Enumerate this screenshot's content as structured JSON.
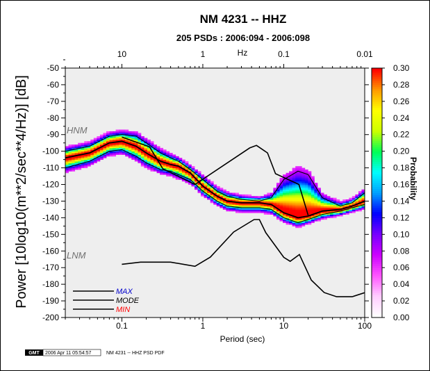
{
  "title": "NM 4231 -- HHZ",
  "subtitle": "205 PSDs : 2006:094 - 2006:098",
  "footer": {
    "logo": "GMT",
    "timestamp": "2006 Apr 11 05:54:57",
    "caption": "NM 4231 -- HHZ PSD PDF"
  },
  "chart_data": {
    "type": "heatmap",
    "x_axis": {
      "label": "Period (sec)",
      "scale": "log",
      "range": [
        0.02,
        100
      ],
      "ticks": [
        0.1,
        1,
        10,
        100
      ],
      "tick_labels": [
        "0.1",
        "1",
        "10",
        "100"
      ]
    },
    "top_axis": {
      "label": "Hz",
      "scale": "log",
      "ticks": [
        10,
        1,
        0.1,
        0.01
      ],
      "tick_labels": [
        "10",
        "1",
        "0.1",
        "0.01"
      ]
    },
    "y_axis": {
      "label": "Power [10log10(m**2/sec**4/Hz)] [dB]",
      "range": [
        -200,
        -50
      ],
      "ticks": [
        -200,
        -190,
        -180,
        -170,
        -160,
        -150,
        -140,
        -130,
        -120,
        -110,
        -100,
        -90,
        -80,
        -70,
        -60,
        -50
      ],
      "tick_labels": [
        "-200",
        "-190",
        "-180",
        "-170",
        "-160",
        "-150",
        "-140",
        "-130",
        "-120",
        "-110",
        "-100",
        "-90",
        "-80",
        "-70",
        "-60",
        "-50"
      ]
    },
    "colorbar": {
      "label": "Probability",
      "range": [
        0.0,
        0.3
      ],
      "ticks": [
        0.0,
        0.02,
        0.04,
        0.06,
        0.08,
        0.1,
        0.12,
        0.14,
        0.16,
        0.18,
        0.2,
        0.22,
        0.24,
        0.26,
        0.28,
        0.3
      ],
      "tick_labels": [
        "0.00",
        "0.02",
        "0.04",
        "0.06",
        "0.08",
        "0.10",
        "0.12",
        "0.14",
        "0.16",
        "0.18",
        "0.20",
        "0.22",
        "0.24",
        "0.26",
        "0.28",
        "0.30"
      ]
    },
    "model_labels": {
      "high": "HNM",
      "low": "LNM"
    },
    "series": [
      {
        "name": "MAX",
        "color": "#0000cc",
        "x": [
          0.02,
          0.04,
          0.07,
          0.1,
          0.15,
          0.2,
          0.3,
          0.4,
          0.5,
          0.7,
          1,
          1.5,
          2,
          3,
          5,
          7,
          10,
          15,
          20,
          30,
          50,
          70,
          100
        ],
        "y": [
          -100,
          -97,
          -91,
          -90,
          -91,
          -95,
          -101,
          -104,
          -106,
          -111,
          -117,
          -124,
          -127,
          -129,
          -130,
          -128,
          -117,
          -112,
          -114,
          -128,
          -133,
          -131,
          -125
        ]
      },
      {
        "name": "MODE",
        "color": "#000000",
        "x": [
          0.02,
          0.04,
          0.07,
          0.1,
          0.15,
          0.2,
          0.3,
          0.4,
          0.5,
          0.7,
          1,
          1.5,
          2,
          3,
          5,
          7,
          10,
          15,
          20,
          30,
          50,
          70,
          100
        ],
        "y": [
          -104,
          -101,
          -95,
          -94,
          -97,
          -101,
          -106,
          -108,
          -109,
          -113,
          -121,
          -127,
          -130,
          -131,
          -131,
          -132,
          -137,
          -140,
          -139,
          -136,
          -135,
          -133,
          -130
        ]
      },
      {
        "name": "MIN",
        "color": "#ff0000",
        "x": [
          0.02,
          0.04,
          0.07,
          0.1,
          0.15,
          0.2,
          0.3,
          0.4,
          0.5,
          0.7,
          1,
          1.5,
          2,
          3,
          5,
          7,
          10,
          15,
          20,
          30,
          50,
          70,
          100
        ],
        "y": [
          -110,
          -106,
          -100,
          -99,
          -103,
          -107,
          -111,
          -112,
          -114,
          -117,
          -124,
          -130,
          -133,
          -134,
          -134,
          -135,
          -140,
          -143,
          -141,
          -138,
          -136,
          -134,
          -132
        ]
      }
    ],
    "models": [
      {
        "name": "HNM",
        "x": [
          0.1,
          0.22,
          0.32,
          0.8,
          3.8,
          4.6,
          6.3,
          7.9,
          15.4,
          20
        ],
        "y": [
          -91.5,
          -97.4,
          -110.5,
          -120,
          -98,
          -96.5,
          -101,
          -113.5,
          -120,
          -138.5
        ]
      },
      {
        "name": "LNM",
        "x": [
          0.1,
          0.17,
          0.4,
          0.8,
          1.24,
          2.4,
          4.3,
          5,
          6,
          10,
          12,
          15.6,
          21.9,
          31.6,
          45,
          70,
          101,
          154,
          328,
          600,
          10000
        ],
        "y": [
          -168,
          -166.7,
          -166.7,
          -169.2,
          -163.7,
          -148.6,
          -141.1,
          -141.1,
          -149,
          -163.8,
          -166.2,
          -162.1,
          -177.5,
          -185,
          -187.5,
          -187.5,
          -185,
          -185.3,
          -185.1,
          -186.3,
          -186.6
        ]
      }
    ],
    "legend": {
      "placement": "bottom-left",
      "entries": [
        "MAX",
        "MODE",
        "MIN"
      ]
    },
    "grid": false
  },
  "colors": {
    "background": "#ffffff",
    "no_data": "#eeeeee",
    "model_line": "#000000",
    "colormap": [
      "#ffffff",
      "#ffccff",
      "#ff55ff",
      "#cc00ff",
      "#7700ff",
      "#0000ff",
      "#00a0ff",
      "#00ffff",
      "#00ff55",
      "#ccff00",
      "#ffff00",
      "#ff9900",
      "#ff0000"
    ]
  }
}
